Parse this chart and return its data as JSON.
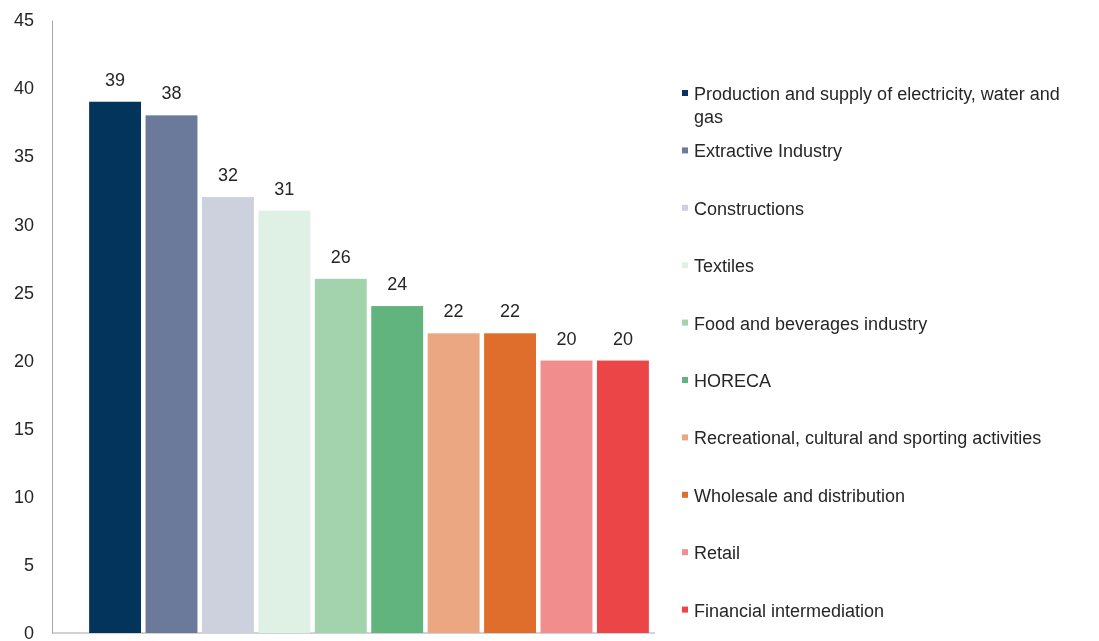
{
  "chart_data": {
    "type": "bar",
    "stacked": true,
    "categories": [
      null,
      null,
      null,
      null,
      null,
      null,
      null,
      null,
      null,
      null
    ],
    "series": [
      {
        "name": "Production and supply of electricity, water and gas",
        "color": "#03345c",
        "values": [
          39,
          null,
          null,
          null,
          null,
          null,
          null,
          null,
          null,
          null
        ]
      },
      {
        "name": "Extractive Industry",
        "color": "#6b7a9a",
        "values": [
          null,
          38,
          null,
          null,
          null,
          null,
          null,
          null,
          null,
          null
        ]
      },
      {
        "name": "Constructions",
        "color": "#cdd1de",
        "values": [
          null,
          null,
          32,
          null,
          null,
          null,
          null,
          null,
          null,
          null
        ]
      },
      {
        "name": "Textiles",
        "color": "#dff0e4",
        "values": [
          null,
          null,
          null,
          31,
          null,
          null,
          null,
          null,
          null,
          null
        ]
      },
      {
        "name": "Food and beverages industry",
        "color": "#a3d3ad",
        "values": [
          null,
          null,
          null,
          null,
          26,
          null,
          null,
          null,
          null,
          null
        ]
      },
      {
        "name": "HORECA",
        "color": "#62b47f",
        "values": [
          null,
          null,
          null,
          null,
          null,
          24,
          null,
          null,
          null,
          null
        ]
      },
      {
        "name": "Recreational, cultural and sporting activities",
        "color": "#eba782",
        "values": [
          null,
          null,
          null,
          null,
          null,
          null,
          22,
          null,
          null,
          null
        ]
      },
      {
        "name": "Wholesale and distribution",
        "color": "#df6d2b",
        "values": [
          null,
          null,
          null,
          null,
          null,
          null,
          null,
          22,
          null,
          null
        ]
      },
      {
        "name": "Retail",
        "color": "#f28d8e",
        "values": [
          null,
          null,
          null,
          null,
          null,
          null,
          null,
          null,
          20,
          null
        ]
      },
      {
        "name": "Financial intermediation",
        "color": "#ec4548",
        "values": [
          null,
          null,
          null,
          null,
          null,
          null,
          null,
          null,
          null,
          20
        ]
      }
    ],
    "data_labels": true,
    "ylim": [
      0,
      45
    ],
    "yticks": [
      0,
      5,
      10,
      15,
      20,
      25,
      30,
      35,
      40,
      45
    ],
    "tick_labels": "y",
    "grid": false,
    "legend": "right"
  }
}
